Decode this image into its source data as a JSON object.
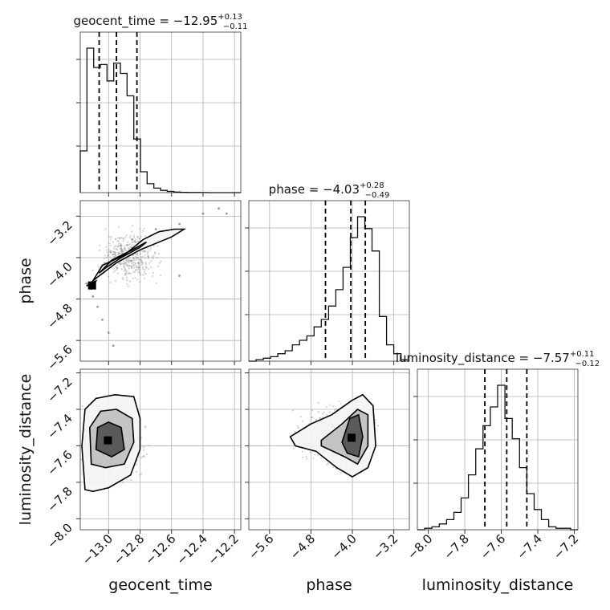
{
  "chart_data": [
    {
      "type": "histogram",
      "panel": "geocent_time",
      "title": {
        "prefix": "geocent_time = ",
        "value": "−12.95",
        "plus": "+0.13",
        "minus": "−0.11"
      },
      "xlim": [
        -13.18,
        -12.16
      ],
      "bin_start": -13.18,
      "bin_width": 0.0425,
      "counts": [
        0.28,
        0.97,
        0.84,
        0.86,
        0.75,
        0.87,
        0.8,
        0.65,
        0.36,
        0.14,
        0.06,
        0.03,
        0.015,
        0.008,
        0.004,
        0.002,
        0.001,
        0.001,
        0.0005,
        0,
        0,
        0,
        0,
        0
      ],
      "quantiles": [
        -13.06,
        -12.95,
        -12.82
      ]
    },
    {
      "type": "histogram",
      "panel": "phase",
      "title": {
        "prefix": "phase = ",
        "value": "−4.03",
        "plus": "+0.28",
        "minus": "−0.49"
      },
      "xlim": [
        -6.0,
        -2.9
      ],
      "bin_start": -6.0,
      "bin_width": 0.14,
      "counts": [
        0.0,
        0.01,
        0.02,
        0.03,
        0.05,
        0.07,
        0.11,
        0.14,
        0.17,
        0.23,
        0.28,
        0.37,
        0.48,
        0.63,
        0.83,
        0.97,
        0.89,
        0.74,
        0.3,
        0.11,
        0.05,
        0.01
      ],
      "quantiles": [
        -4.52,
        -4.03,
        -3.75
      ]
    },
    {
      "type": "histogram",
      "panel": "luminosity_distance",
      "title": {
        "prefix": "luminosity_distance = ",
        "value": "−7.57",
        "plus": "+0.11",
        "minus": "−0.12"
      },
      "xlim": [
        -8.06,
        -7.18
      ],
      "bin_start": -8.06,
      "bin_width": 0.04,
      "counts": [
        0.0,
        0.01,
        0.02,
        0.04,
        0.07,
        0.12,
        0.22,
        0.38,
        0.56,
        0.72,
        0.85,
        1.0,
        0.77,
        0.63,
        0.43,
        0.25,
        0.14,
        0.07,
        0.02,
        0.01,
        0.01,
        0.0
      ],
      "quantiles": [
        -7.69,
        -7.57,
        -7.46
      ]
    },
    {
      "type": "scatter",
      "panel": "phase vs geocent_time",
      "xlim": [
        -13.18,
        -12.16
      ],
      "ylim": [
        -6.0,
        -2.9
      ],
      "points": [
        [
          -13.12,
          -4.55
        ],
        [
          -13.1,
          -4.75
        ],
        [
          -13.07,
          -4.95
        ],
        [
          -13.04,
          -5.2
        ],
        [
          -13.0,
          -5.45
        ],
        [
          -12.97,
          -5.7
        ],
        [
          -13.14,
          -4.5
        ],
        [
          -12.85,
          -3.65
        ],
        [
          -12.7,
          -3.45
        ],
        [
          -12.55,
          -3.35
        ],
        [
          -12.4,
          -3.15
        ],
        [
          -12.3,
          -3.05
        ],
        [
          -12.25,
          -3.15
        ],
        [
          -12.55,
          -4.35
        ]
      ],
      "contours": [
        [
          [
            -13.1,
            -4.45
          ],
          [
            -13.04,
            -4.15
          ],
          [
            -12.9,
            -3.95
          ],
          [
            -12.78,
            -3.65
          ],
          [
            -12.68,
            -3.5
          ],
          [
            -12.58,
            -3.45
          ],
          [
            -12.52,
            -3.45
          ],
          [
            -12.6,
            -3.6
          ],
          [
            -12.8,
            -3.85
          ],
          [
            -12.95,
            -4.1
          ],
          [
            -13.08,
            -4.4
          ],
          [
            -13.14,
            -4.55
          ],
          [
            -13.1,
            -4.45
          ]
        ],
        [
          [
            -13.06,
            -4.3
          ],
          [
            -12.98,
            -4.05
          ],
          [
            -12.85,
            -3.85
          ],
          [
            -12.76,
            -3.7
          ],
          [
            -12.8,
            -3.8
          ],
          [
            -12.92,
            -4.0
          ],
          [
            -13.02,
            -4.2
          ],
          [
            -13.06,
            -4.3
          ]
        ],
        [
          [
            -13.11,
            -4.6
          ],
          [
            -13.08,
            -4.45
          ],
          [
            -13.12,
            -4.5
          ],
          [
            -13.11,
            -4.6
          ]
        ]
      ]
    },
    {
      "type": "scatter",
      "panel": "luminosity_distance vs geocent_time",
      "xlim": [
        -13.18,
        -12.16
      ],
      "ylim": [
        -8.06,
        -7.18
      ],
      "contours": [
        [
          [
            -13.15,
            -7.84
          ],
          [
            -13.17,
            -7.6
          ],
          [
            -13.15,
            -7.4
          ],
          [
            -13.08,
            -7.34
          ],
          [
            -12.96,
            -7.32
          ],
          [
            -12.84,
            -7.33
          ],
          [
            -12.8,
            -7.45
          ],
          [
            -12.8,
            -7.62
          ],
          [
            -12.86,
            -7.76
          ],
          [
            -13.0,
            -7.83
          ],
          [
            -13.1,
            -7.85
          ],
          [
            -13.15,
            -7.84
          ]
        ],
        [
          [
            -13.11,
            -7.7
          ],
          [
            -13.12,
            -7.5
          ],
          [
            -13.05,
            -7.41
          ],
          [
            -12.95,
            -7.4
          ],
          [
            -12.85,
            -7.45
          ],
          [
            -12.84,
            -7.58
          ],
          [
            -12.9,
            -7.7
          ],
          [
            -13.02,
            -7.72
          ],
          [
            -13.11,
            -7.7
          ]
        ],
        [
          [
            -13.08,
            -7.62
          ],
          [
            -13.07,
            -7.5
          ],
          [
            -13.0,
            -7.47
          ],
          [
            -12.92,
            -7.5
          ],
          [
            -12.9,
            -7.62
          ],
          [
            -12.98,
            -7.66
          ],
          [
            -13.08,
            -7.62
          ]
        ]
      ]
    },
    {
      "type": "scatter",
      "panel": "luminosity_distance vs phase",
      "xlim": [
        -6.0,
        -2.9
      ],
      "ylim": [
        -8.06,
        -7.18
      ],
      "contours": [
        [
          [
            -5.2,
            -7.55
          ],
          [
            -4.8,
            -7.48
          ],
          [
            -4.4,
            -7.43
          ],
          [
            -4.0,
            -7.35
          ],
          [
            -3.8,
            -7.32
          ],
          [
            -3.6,
            -7.38
          ],
          [
            -3.55,
            -7.6
          ],
          [
            -3.7,
            -7.72
          ],
          [
            -4.0,
            -7.77
          ],
          [
            -4.3,
            -7.72
          ],
          [
            -4.7,
            -7.63
          ],
          [
            -5.1,
            -7.6
          ],
          [
            -5.2,
            -7.55
          ]
        ],
        [
          [
            -4.6,
            -7.57
          ],
          [
            -4.2,
            -7.48
          ],
          [
            -3.9,
            -7.4
          ],
          [
            -3.7,
            -7.43
          ],
          [
            -3.7,
            -7.6
          ],
          [
            -3.9,
            -7.7
          ],
          [
            -4.15,
            -7.66
          ],
          [
            -4.6,
            -7.6
          ],
          [
            -4.6,
            -7.57
          ]
        ],
        [
          [
            -4.2,
            -7.58
          ],
          [
            -4.05,
            -7.45
          ],
          [
            -3.88,
            -7.43
          ],
          [
            -3.8,
            -7.55
          ],
          [
            -3.88,
            -7.66
          ],
          [
            -4.1,
            -7.64
          ],
          [
            -4.2,
            -7.58
          ]
        ]
      ]
    }
  ],
  "axes": {
    "geocent_time": {
      "label": "geocent_time",
      "ticks": [
        -13.0,
        -12.8,
        -12.6,
        -12.4,
        -12.2
      ],
      "tick_labels": [
        "−13.0",
        "−12.8",
        "−12.6",
        "−12.4",
        "−12.2"
      ]
    },
    "phase": {
      "label": "phase",
      "ticks": [
        -5.6,
        -4.8,
        -4.0,
        -3.2
      ],
      "tick_labels": [
        "−5.6",
        "−4.8",
        "−4.0",
        "−3.2"
      ]
    },
    "luminosity_distance": {
      "label": "luminosity_distance",
      "ticks": [
        -8.0,
        -7.8,
        -7.6,
        -7.4,
        -7.2
      ],
      "tick_labels": [
        "−8.0",
        "−7.8",
        "−7.6",
        "−7.4",
        "−7.2"
      ]
    }
  },
  "colors": {
    "line": "#000000",
    "grid": "#b0b0b0",
    "points": "#555555"
  }
}
